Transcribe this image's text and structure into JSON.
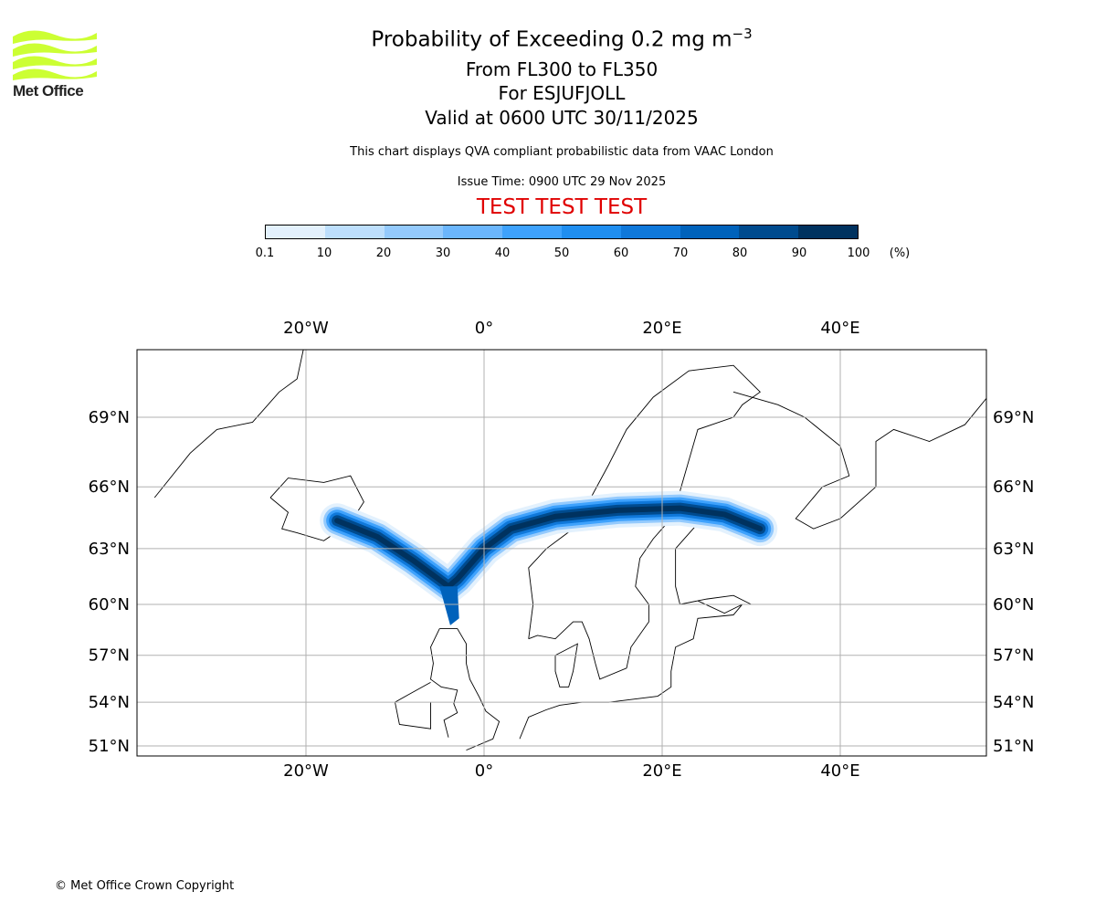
{
  "logo": {
    "text": "Met Office",
    "color": "#ccff33"
  },
  "header": {
    "title": "Probability of Exceeding 0.2 mg m",
    "title_sup": "−3",
    "level": "From FL300 to FL350",
    "volcano": "For ESJUFJOLL",
    "valid": "Valid at 0600 UTC 30/11/2025",
    "note": "This chart displays QVA compliant probabilistic data from VAAC London",
    "issue": "Issue Time: 0900 UTC 29 Nov 2025",
    "test": "TEST TEST TEST"
  },
  "colorbar": {
    "ticks": [
      "0.1",
      "10",
      "20",
      "30",
      "40",
      "50",
      "60",
      "70",
      "80",
      "90",
      "100"
    ],
    "unit": "(%)",
    "colors": [
      "#e3f1fd",
      "#bddffd",
      "#94cafd",
      "#6bb6fd",
      "#3ea2fd",
      "#1f8ef0",
      "#0f78da",
      "#0062bb",
      "#004b8e",
      "#00325f"
    ]
  },
  "map": {
    "lon_labels": [
      "20°W",
      "0°",
      "20°E",
      "40°E"
    ],
    "lon_values": [
      -20,
      0,
      20,
      40
    ],
    "lat_labels": [
      "69°N",
      "66°N",
      "63°N",
      "60°N",
      "57°N",
      "54°N",
      "51°N"
    ],
    "lat_values": [
      69,
      66,
      63,
      60,
      57,
      54,
      51
    ],
    "plume_centerline": [
      [
        -16.5,
        64.4
      ],
      [
        -12,
        63.6
      ],
      [
        -8,
        62.4
      ],
      [
        -4,
        61.0
      ],
      [
        -3,
        61.4
      ],
      [
        0,
        63.0
      ],
      [
        3,
        64.0
      ],
      [
        8,
        64.6
      ],
      [
        15,
        64.9
      ],
      [
        22,
        65.0
      ],
      [
        27,
        64.7
      ],
      [
        31,
        64.0
      ]
    ]
  },
  "footer": {
    "copyright": "© Met Office Crown Copyright"
  }
}
